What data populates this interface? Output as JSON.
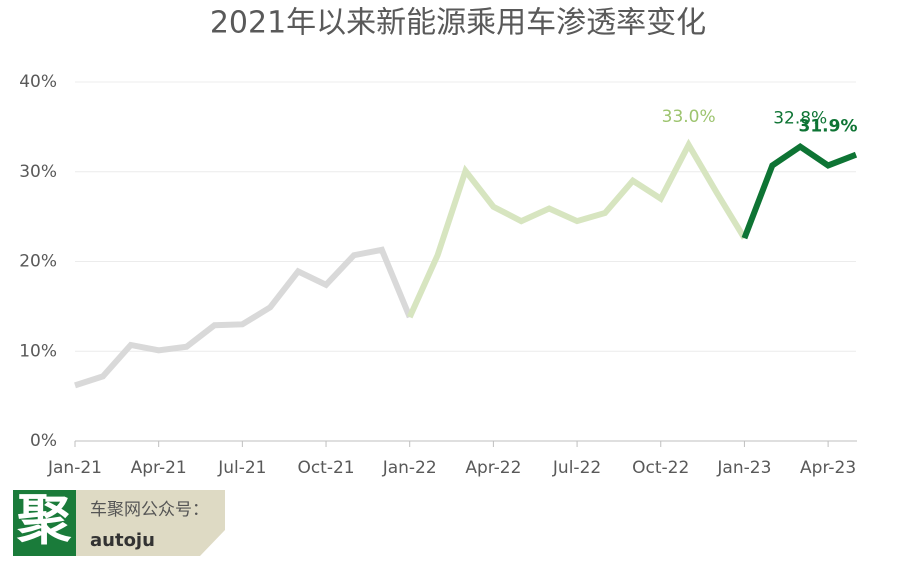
{
  "chart_data": {
    "type": "line",
    "title": "2021年以来新能源乘用车渗透率变化",
    "categories": [
      "Jan-21",
      null,
      null,
      "Apr-21",
      null,
      null,
      "Jul-21",
      null,
      null,
      "Oct-21",
      null,
      null,
      "Jan-22",
      null,
      null,
      "Apr-22",
      null,
      null,
      "Jul-22",
      null,
      null,
      "Oct-22",
      null,
      null,
      "Jan-23",
      null,
      null,
      "Apr-23",
      null
    ],
    "series": [
      {
        "color": "#d9d9d9",
        "values": [
          6.2,
          7.2,
          10.7,
          10.1,
          10.5,
          12.9,
          13.0,
          14.9,
          18.9,
          17.4,
          20.7,
          21.3,
          13.8,
          null,
          null,
          null,
          null,
          null,
          null,
          null,
          null,
          null,
          null,
          null,
          null,
          null,
          null,
          null,
          null
        ]
      },
      {
        "color": "#d7e5c0",
        "values": [
          null,
          null,
          null,
          null,
          null,
          null,
          null,
          null,
          null,
          null,
          null,
          null,
          13.8,
          20.7,
          30.1,
          26.1,
          24.5,
          25.9,
          24.5,
          25.4,
          29.0,
          27.0,
          33.0,
          27.7,
          22.6,
          null,
          null,
          null,
          null
        ],
        "value_labels": [
          null,
          null,
          null,
          null,
          null,
          null,
          null,
          null,
          null,
          null,
          null,
          null,
          null,
          null,
          null,
          null,
          null,
          null,
          null,
          null,
          null,
          null,
          "33.0%",
          null,
          null,
          null,
          null,
          null,
          null
        ]
      },
      {
        "color": "#0e7434",
        "values": [
          null,
          null,
          null,
          null,
          null,
          null,
          null,
          null,
          null,
          null,
          null,
          null,
          null,
          null,
          null,
          null,
          null,
          null,
          null,
          null,
          null,
          null,
          null,
          null,
          22.6,
          30.7,
          32.8,
          30.7,
          31.9
        ],
        "value_labels": [
          null,
          null,
          null,
          null,
          null,
          null,
          null,
          null,
          null,
          null,
          null,
          null,
          null,
          null,
          null,
          null,
          null,
          null,
          null,
          null,
          null,
          null,
          null,
          null,
          null,
          null,
          "32.8%",
          null,
          "31.9%"
        ]
      }
    ],
    "ylim": [
      0,
      40
    ],
    "yticks": [
      {
        "value": 0,
        "label": "0%"
      },
      {
        "value": 10,
        "label": "10%"
      },
      {
        "value": 20,
        "label": "20%"
      },
      {
        "value": 30,
        "label": "30%"
      },
      {
        "value": 40,
        "label": "40%"
      }
    ],
    "grid": true
  },
  "badge": {
    "icon": "聚",
    "line1": "车聚网公众号：",
    "line2": "autoju"
  }
}
